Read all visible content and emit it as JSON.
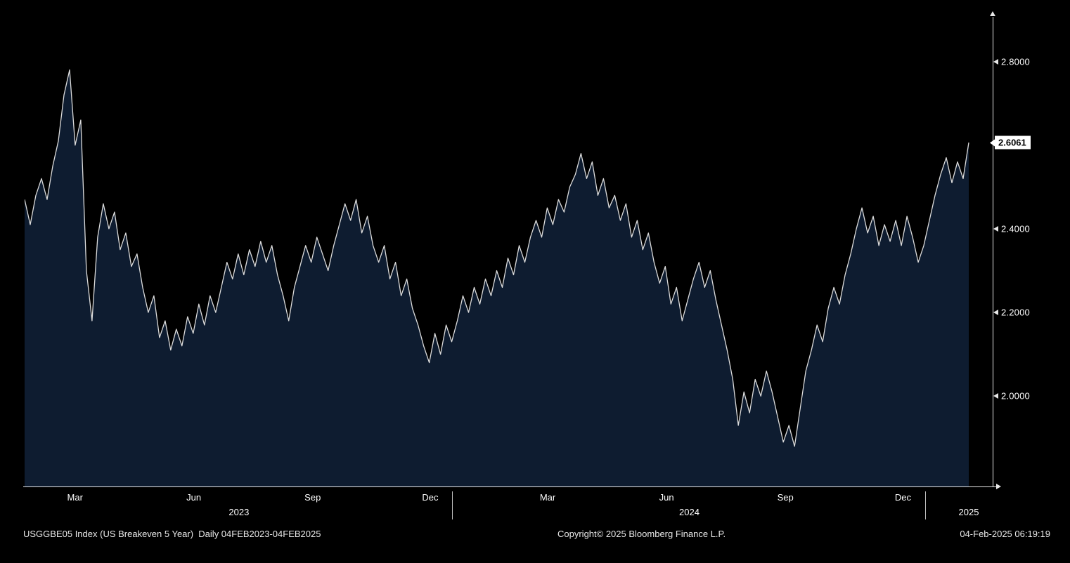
{
  "chart_data": {
    "type": "area",
    "title": "USGGBE05 Index (US Breakeven 5 Year)",
    "period": "Daily 04FEB2023-04FEB2025",
    "ylim": [
      1.784,
      2.9
    ],
    "grid": false,
    "legend_position": "none",
    "y_ticks": [
      {
        "label": "2.8000",
        "value": 2.8
      },
      {
        "label": "2.4000",
        "value": 2.4
      },
      {
        "label": "2.2000",
        "value": 2.2
      },
      {
        "label": "2.0000",
        "value": 2.0
      }
    ],
    "last_price": {
      "label": "2.6061",
      "value": 2.6061
    },
    "x_ticks": [
      {
        "label": "Mar",
        "pos": 0.0534
      },
      {
        "label": "Jun",
        "pos": 0.1792
      },
      {
        "label": "Sep",
        "pos": 0.3051
      },
      {
        "label": "Dec",
        "pos": 0.4296
      },
      {
        "label": "Mar",
        "pos": 0.554
      },
      {
        "label": "Jun",
        "pos": 0.6799
      },
      {
        "label": "Sep",
        "pos": 0.8058
      },
      {
        "label": "Dec",
        "pos": 0.9303
      }
    ],
    "year_labels": [
      {
        "label": "2023",
        "pos": 0.227
      },
      {
        "label": "2024",
        "pos": 0.704
      },
      {
        "label": "2025",
        "pos": 1.0
      }
    ],
    "year_separators": [
      0.4528,
      0.9535
    ],
    "series": [
      {
        "name": "USGGBE05",
        "values": [
          2.47,
          2.41,
          2.48,
          2.52,
          2.47,
          2.55,
          2.61,
          2.72,
          2.78,
          2.6,
          2.66,
          2.3,
          2.18,
          2.38,
          2.46,
          2.4,
          2.44,
          2.35,
          2.39,
          2.31,
          2.34,
          2.26,
          2.2,
          2.24,
          2.14,
          2.18,
          2.11,
          2.16,
          2.12,
          2.19,
          2.15,
          2.22,
          2.17,
          2.24,
          2.2,
          2.26,
          2.32,
          2.28,
          2.34,
          2.29,
          2.35,
          2.31,
          2.37,
          2.32,
          2.36,
          2.29,
          2.24,
          2.18,
          2.26,
          2.31,
          2.36,
          2.32,
          2.38,
          2.34,
          2.3,
          2.36,
          2.41,
          2.46,
          2.42,
          2.47,
          2.39,
          2.43,
          2.36,
          2.32,
          2.36,
          2.28,
          2.32,
          2.24,
          2.28,
          2.21,
          2.17,
          2.12,
          2.08,
          2.15,
          2.1,
          2.17,
          2.13,
          2.18,
          2.24,
          2.2,
          2.26,
          2.22,
          2.28,
          2.24,
          2.3,
          2.26,
          2.33,
          2.29,
          2.36,
          2.32,
          2.38,
          2.42,
          2.38,
          2.45,
          2.41,
          2.47,
          2.44,
          2.5,
          2.53,
          2.58,
          2.52,
          2.56,
          2.48,
          2.52,
          2.45,
          2.48,
          2.42,
          2.46,
          2.38,
          2.42,
          2.35,
          2.39,
          2.32,
          2.27,
          2.31,
          2.22,
          2.26,
          2.18,
          2.23,
          2.28,
          2.32,
          2.26,
          2.3,
          2.23,
          2.17,
          2.11,
          2.04,
          1.93,
          2.01,
          1.96,
          2.04,
          2.0,
          2.06,
          2.01,
          1.95,
          1.89,
          1.93,
          1.88,
          1.97,
          2.06,
          2.11,
          2.17,
          2.13,
          2.21,
          2.26,
          2.22,
          2.29,
          2.34,
          2.4,
          2.45,
          2.39,
          2.43,
          2.36,
          2.41,
          2.37,
          2.42,
          2.36,
          2.43,
          2.38,
          2.32,
          2.36,
          2.42,
          2.48,
          2.53,
          2.57,
          2.51,
          2.56,
          2.52,
          2.6061
        ]
      }
    ],
    "colors": {
      "background": "#000000",
      "area_fill": "#0e1c30",
      "line": "#dcdcdc",
      "axis": "#e8e8e8",
      "text": "#ffffff",
      "last_price_bg": "#ffffff",
      "last_price_text": "#000000"
    }
  },
  "footer": {
    "left": "USGGBE05 Index (US Breakeven 5 Year)  Daily 04FEB2023-04FEB2025",
    "center": "Copyright© 2025 Bloomberg Finance L.P.",
    "right": "04-Feb-2025 06:19:19"
  }
}
